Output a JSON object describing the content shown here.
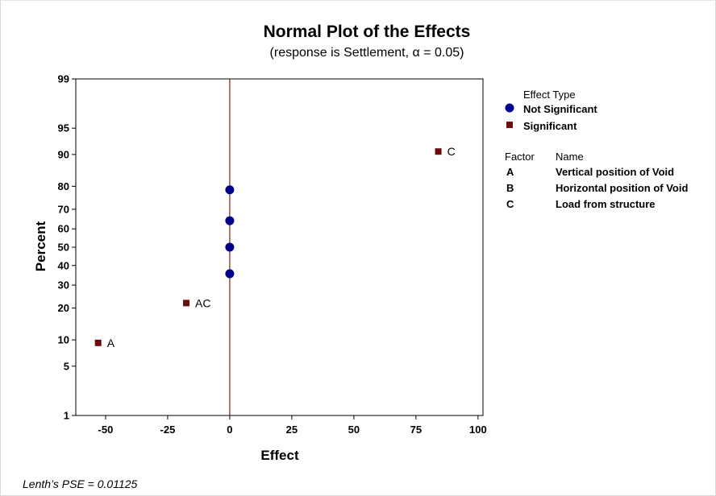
{
  "chart_data": {
    "type": "scatter",
    "title": "Normal Plot of the Effects",
    "subtitle": "(response is Settlement, α = 0.05)",
    "xlabel": "Effect",
    "ylabel": "Percent",
    "xlim": [
      -62,
      102
    ],
    "ylim": [
      1,
      99
    ],
    "y_scale": "normal-probability",
    "x_ticks": [
      -50,
      -25,
      0,
      25,
      50,
      75,
      100
    ],
    "x_tick_labels": [
      "-50",
      "-25",
      "0",
      "25",
      "50",
      "75",
      "100"
    ],
    "y_ticks": [
      1,
      5,
      10,
      20,
      30,
      40,
      50,
      60,
      70,
      80,
      90,
      95,
      99
    ],
    "y_tick_labels": [
      "1",
      "5",
      "10",
      "20",
      "30",
      "40",
      "50",
      "60",
      "70",
      "80",
      "90",
      "95",
      "99"
    ],
    "reference_line": {
      "x": 0,
      "color": "#8b1a1a"
    },
    "series": [
      {
        "name": "Not Significant",
        "marker": "circle",
        "color": "#00008b",
        "points": [
          {
            "x": 0,
            "y": 35.7,
            "label": ""
          },
          {
            "x": 0,
            "y": 50.0,
            "label": ""
          },
          {
            "x": 0,
            "y": 64.3,
            "label": ""
          },
          {
            "x": 0,
            "y": 78.6,
            "label": ""
          }
        ]
      },
      {
        "name": "Significant",
        "marker": "square",
        "color": "#6b0b0b",
        "points": [
          {
            "x": -53,
            "y": 9.3,
            "label": "A"
          },
          {
            "x": -17.5,
            "y": 22.0,
            "label": "AC"
          },
          {
            "x": 84,
            "y": 90.7,
            "label": "C"
          }
        ]
      }
    ],
    "legend": {
      "position": "right",
      "title": "Effect Type",
      "entries": [
        "Not Significant",
        "Significant"
      ]
    },
    "factor_table": {
      "headers": [
        "Factor",
        "Name"
      ],
      "rows": [
        [
          "A",
          "Vertical position of Void"
        ],
        [
          "B",
          "Horizontal position of Void"
        ],
        [
          "C",
          "Load from structure"
        ]
      ]
    },
    "footnote": "Lenth’s PSE = 0.01125"
  }
}
